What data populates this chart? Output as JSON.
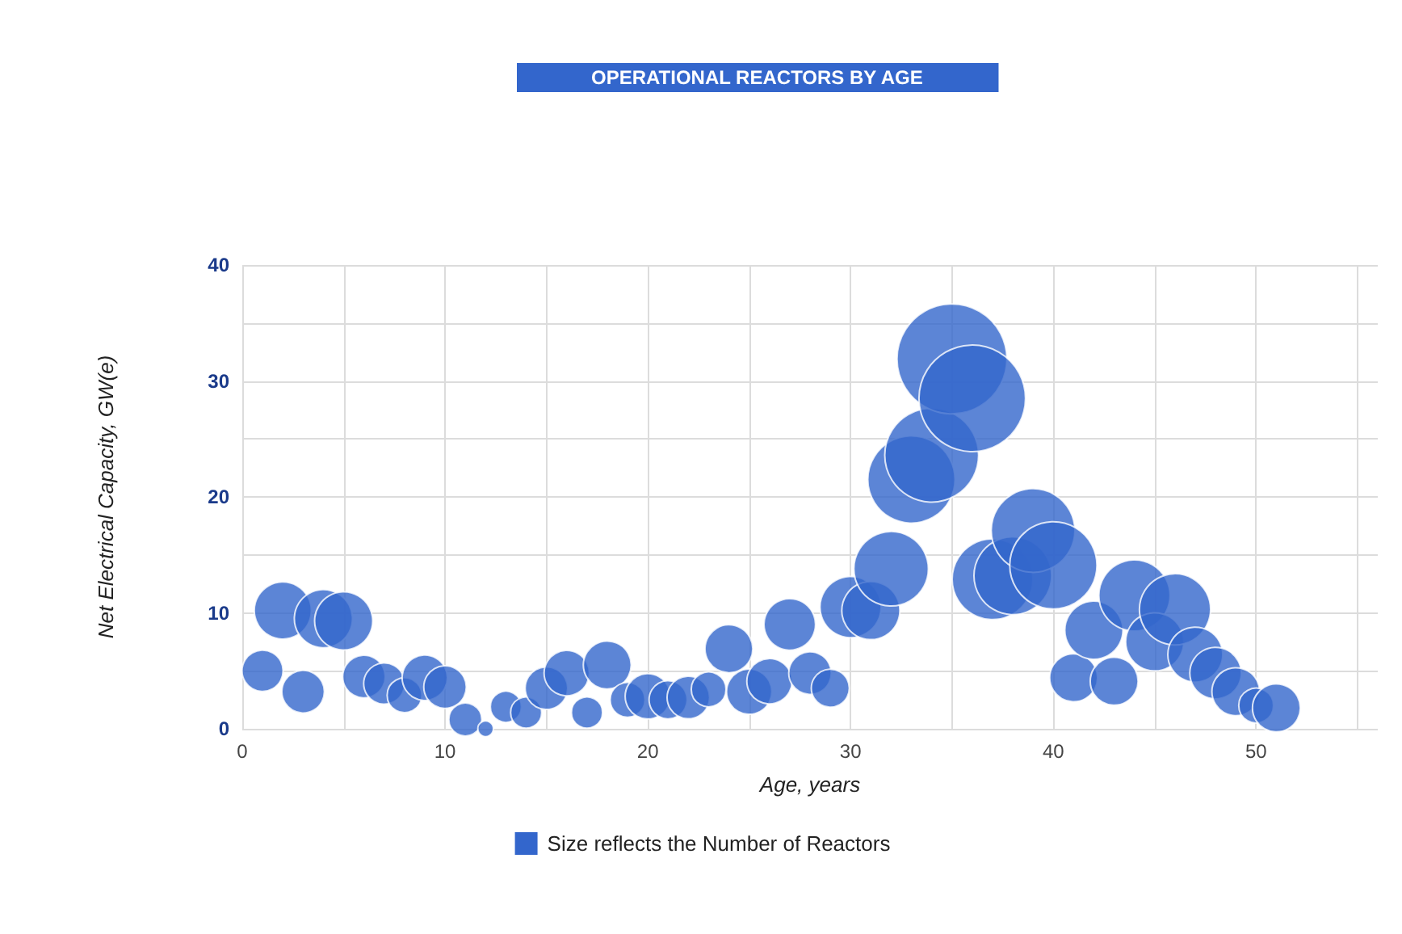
{
  "chart_data": {
    "type": "bubble",
    "title": "OPERATIONAL REACTORS BY AGE",
    "xlabel": "Age, years",
    "ylabel": "Net Electrical Capacity, GW(e)",
    "x": [
      1,
      2,
      3,
      4,
      5,
      6,
      7,
      8,
      9,
      10,
      11,
      12,
      13,
      14,
      15,
      16,
      17,
      18,
      19,
      20,
      21,
      22,
      23,
      24,
      25,
      26,
      27,
      28,
      29,
      30,
      31,
      32,
      33,
      34,
      35,
      36,
      37,
      38,
      39,
      40,
      41,
      42,
      43,
      44,
      45,
      46,
      47,
      48,
      49,
      50,
      51
    ],
    "series": [
      {
        "name": "Size reflects the Number of Reactors",
        "color": "#3366cc",
        "values": [
          5.0,
          10.2,
          3.2,
          9.5,
          9.3,
          4.5,
          3.9,
          2.9,
          4.4,
          3.6,
          0.8,
          0,
          1.9,
          1.4,
          3.5,
          4.8,
          1.4,
          5.5,
          2.5,
          2.8,
          2.5,
          2.7,
          3.4,
          6.9,
          3.2,
          4.1,
          9.0,
          4.8,
          3.5,
          10.5,
          10.2,
          13.8,
          21.5,
          23.6,
          31.9,
          28.5,
          12.9,
          13.2,
          17.1,
          14.1,
          4.4,
          8.5,
          4.1,
          11.5,
          7.5,
          10.3,
          6.4,
          4.8,
          3.2,
          2.0,
          1.8
        ],
        "sizes": [
          0.14,
          0.27,
          0.15,
          0.28,
          0.28,
          0.15,
          0.14,
          0.1,
          0.17,
          0.15,
          0.09,
          0.02,
          0.08,
          0.08,
          0.15,
          0.17,
          0.08,
          0.19,
          0.1,
          0.17,
          0.12,
          0.15,
          0.1,
          0.19,
          0.17,
          0.17,
          0.22,
          0.15,
          0.12,
          0.31,
          0.28,
          0.46,
          0.63,
          0.73,
          1,
          0.94,
          0.54,
          0.5,
          0.58,
          0.63,
          0.19,
          0.28,
          0.19,
          0.42,
          0.28,
          0.42,
          0.25,
          0.22,
          0.19,
          0.1,
          0.19
        ]
      }
    ],
    "xlim": [
      0,
      56
    ],
    "xticks": [
      0,
      {
        "value": 5,
        "label": null
      },
      10,
      {
        "value": 15,
        "label": null
      },
      20,
      {
        "value": 25,
        "label": null
      },
      30,
      {
        "value": 35,
        "label": null
      },
      40,
      {
        "value": 45,
        "label": null
      },
      50,
      {
        "value": 55,
        "label": null
      }
    ],
    "ylim": [
      0,
      40
    ],
    "yticks": [
      0,
      {
        "value": 5,
        "label": null
      },
      10,
      {
        "value": 15,
        "label": null
      },
      20,
      {
        "value": 25,
        "label": null
      },
      30,
      {
        "value": 35,
        "label": null
      },
      40
    ],
    "grid": true,
    "legend": "bottom"
  }
}
